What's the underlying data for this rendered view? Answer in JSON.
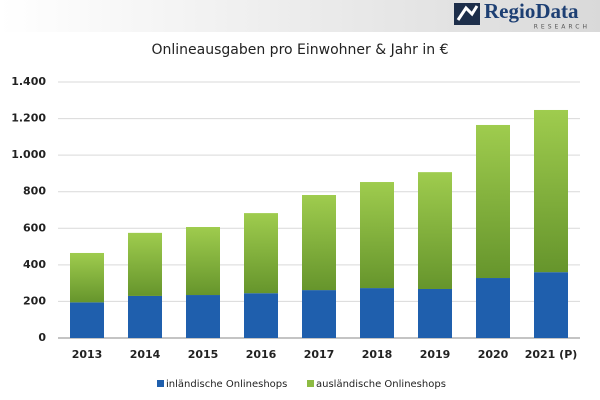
{
  "logo": {
    "name": "RegioData",
    "tagline": "RESEARCH"
  },
  "chart_data": {
    "type": "stacked_bar",
    "title": "Onlineausgaben pro Einwohner & Jahr in €",
    "categories": [
      "2013",
      "2014",
      "2015",
      "2016",
      "2017",
      "2018",
      "2019",
      "2020",
      "2021 (P)"
    ],
    "series": [
      {
        "name": "inländische Onlineshops",
        "color": "#1f5fad",
        "values": [
          195,
          230,
          235,
          245,
          262,
          273,
          268,
          328,
          360
        ]
      },
      {
        "name": "ausländische Onlineshops",
        "color": "#8dbb43",
        "values": [
          270,
          345,
          372,
          438,
          520,
          580,
          639,
          837,
          887
        ]
      }
    ],
    "ylim": [
      0,
      1400
    ],
    "yticks": [
      0,
      200,
      400,
      600,
      800,
      {
        "value": 1000,
        "label": "1.000"
      },
      {
        "value": 1200,
        "label": "1.200"
      },
      {
        "value": 1400,
        "label": "1.400"
      }
    ],
    "grid": true,
    "legend": "bottom"
  }
}
